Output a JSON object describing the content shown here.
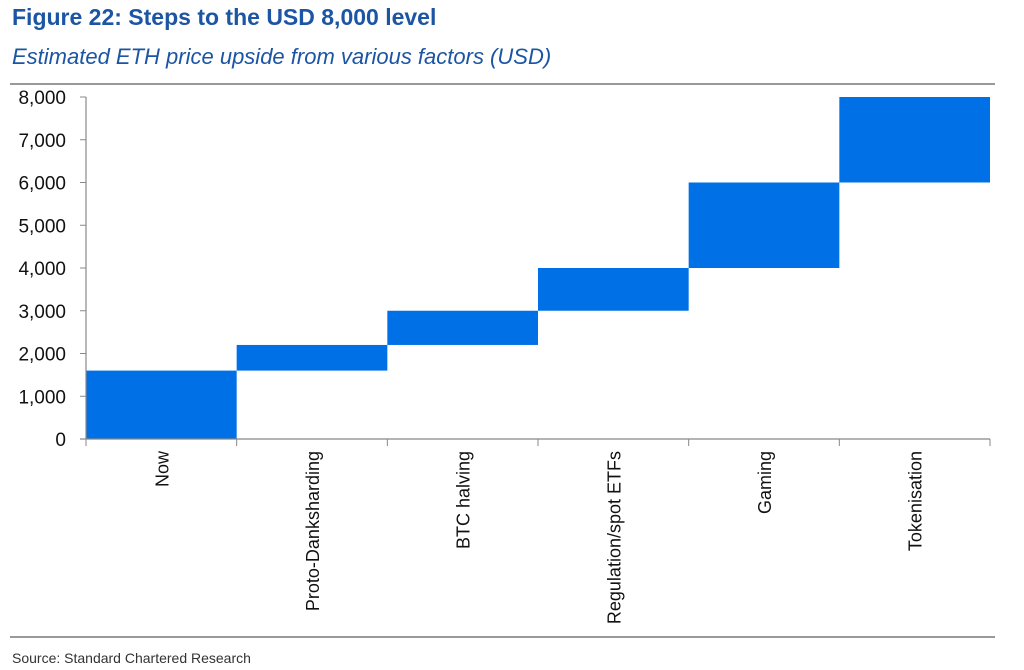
{
  "chart_data": {
    "type": "bar",
    "subtype": "waterfall",
    "title": "Figure 22: Steps to the USD 8,000 level",
    "subtitle": "Estimated ETH price upside from various factors (USD)",
    "source": "Source: Standard Chartered Research",
    "categories": [
      "Now",
      "Proto-Danksharding",
      "BTC halving",
      "Regulation/spot ETFs",
      "Gaming",
      "Tokenisation"
    ],
    "bars": [
      {
        "category": "Now",
        "start": 0,
        "end": 1600
      },
      {
        "category": "Proto-Danksharding",
        "start": 1600,
        "end": 2200
      },
      {
        "category": "BTC halving",
        "start": 2200,
        "end": 3000
      },
      {
        "category": "Regulation/spot ETFs",
        "start": 3000,
        "end": 4000
      },
      {
        "category": "Gaming",
        "start": 4000,
        "end": 6000
      },
      {
        "category": "Tokenisation",
        "start": 6000,
        "end": 8000
      }
    ],
    "yticks": [
      "0",
      "1,000",
      "2,000",
      "3,000",
      "4,000",
      "5,000",
      "6,000",
      "7,000",
      "8,000"
    ],
    "ylim": [
      0,
      8000
    ],
    "grid": false,
    "colors": {
      "bar": "#0070e6",
      "title": "#1b55a3",
      "rule": "#999999"
    }
  }
}
